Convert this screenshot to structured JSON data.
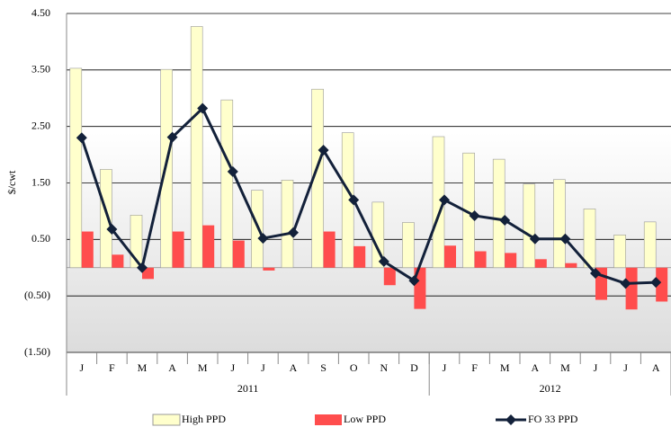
{
  "chart_data": {
    "type": "bar-line",
    "y_label": "$/cwt",
    "categories": [
      "J",
      "F",
      "M",
      "A",
      "M",
      "J",
      "J",
      "A",
      "S",
      "O",
      "N",
      "D",
      "J",
      "F",
      "M",
      "A",
      "M",
      "J",
      "J",
      "A"
    ],
    "groups": [
      {
        "name": "2011",
        "size": 12
      },
      {
        "name": "2012",
        "size": 8
      }
    ],
    "series": [
      {
        "name": "High PPD",
        "kind": "bar",
        "color": "#ffffcc",
        "values": [
          3.53,
          1.74,
          0.93,
          3.51,
          4.27,
          2.97,
          1.37,
          1.55,
          3.16,
          2.39,
          1.16,
          0.8,
          2.32,
          2.03,
          1.92,
          1.48,
          1.56,
          1.04,
          0.58,
          0.81
        ]
      },
      {
        "name": "Low PPD",
        "kind": "bar",
        "color": "#ff4d4d",
        "values": [
          0.64,
          0.23,
          -0.2,
          0.64,
          0.75,
          0.48,
          -0.05,
          0,
          0.64,
          0.38,
          -0.31,
          -0.73,
          0.39,
          0.29,
          0.26,
          0.15,
          0.08,
          -0.57,
          -0.74,
          -0.6
        ]
      },
      {
        "name": "FO 33 PPD",
        "kind": "line",
        "color": "#13213a",
        "values": [
          2.3,
          0.68,
          0.0,
          2.31,
          2.82,
          1.7,
          0.52,
          0.62,
          2.08,
          1.2,
          0.11,
          -0.23,
          1.2,
          0.92,
          0.84,
          0.51,
          0.51,
          -0.1,
          -0.28,
          -0.26
        ]
      }
    ],
    "ylim": [
      -1.5,
      4.5
    ],
    "yticks": [
      {
        "value": -1.5,
        "label": "(1.50)"
      },
      {
        "value": -0.5,
        "label": "(0.50)"
      },
      {
        "value": 0.5,
        "label": "0.50"
      },
      {
        "value": 1.5,
        "label": "1.50"
      },
      {
        "value": 2.5,
        "label": "2.50"
      },
      {
        "value": 3.5,
        "label": "3.50"
      },
      {
        "value": 4.5,
        "label": "4.50"
      }
    ],
    "grid": true
  }
}
